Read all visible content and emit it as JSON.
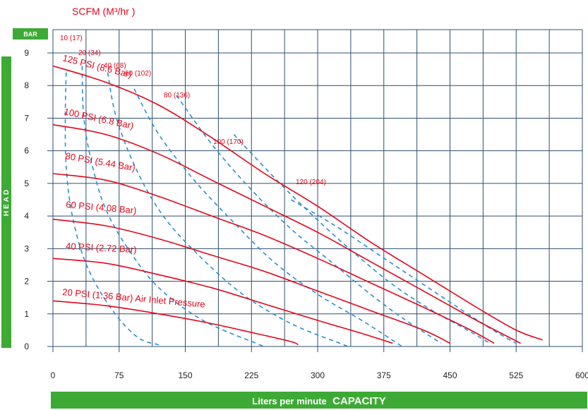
{
  "chart_data": {
    "type": "line",
    "top_title": "SCFM (M³/hr )",
    "y_unit_badge": "BAR",
    "ylabel": "HEAD",
    "xlabel_prefix": "Liters per minute",
    "xlabel_main": "CAPACITY",
    "xlim": [
      0,
      600
    ],
    "ylim": [
      0,
      9
    ],
    "x_ticks": [
      "0",
      "75",
      "150",
      "225",
      "300",
      "375",
      "450",
      "525",
      "600"
    ],
    "y_ticks": [
      "0",
      "1",
      "2",
      "3",
      "4",
      "5",
      "6",
      "7",
      "8",
      "9"
    ],
    "grid": true,
    "colors": {
      "pressure_curve": "#e3061a",
      "air_curve": "#2a8fd0",
      "accent_green": "#3daa35"
    },
    "pressure_series": [
      {
        "name": "125 PSI (8.6 Bar)",
        "points": [
          [
            0,
            8.6
          ],
          [
            60,
            8.1
          ],
          [
            120,
            7.4
          ],
          [
            180,
            6.4
          ],
          [
            240,
            5.3
          ],
          [
            300,
            4.3
          ],
          [
            360,
            3.2
          ],
          [
            420,
            2.2
          ],
          [
            480,
            1.2
          ],
          [
            525,
            0.5
          ],
          [
            555,
            0.2
          ]
        ]
      },
      {
        "name": "100 PSI (6.8 Bar)",
        "points": [
          [
            0,
            6.8
          ],
          [
            60,
            6.5
          ],
          [
            120,
            5.9
          ],
          [
            180,
            5.1
          ],
          [
            240,
            4.3
          ],
          [
            300,
            3.5
          ],
          [
            360,
            2.6
          ],
          [
            420,
            1.7
          ],
          [
            480,
            0.8
          ],
          [
            530,
            0.1
          ]
        ]
      },
      {
        "name": "80 PSI (5.44 Bar)",
        "points": [
          [
            0,
            5.3
          ],
          [
            60,
            5.1
          ],
          [
            120,
            4.6
          ],
          [
            180,
            4.0
          ],
          [
            240,
            3.4
          ],
          [
            300,
            2.7
          ],
          [
            360,
            1.95
          ],
          [
            420,
            1.2
          ],
          [
            470,
            0.55
          ],
          [
            500,
            0.1
          ]
        ]
      },
      {
        "name": "60 PSI (4.08 Bar)",
        "points": [
          [
            0,
            3.9
          ],
          [
            60,
            3.7
          ],
          [
            120,
            3.3
          ],
          [
            180,
            2.8
          ],
          [
            240,
            2.3
          ],
          [
            300,
            1.7
          ],
          [
            360,
            1.1
          ],
          [
            420,
            0.5
          ],
          [
            450,
            0.1
          ]
        ]
      },
      {
        "name": "40 PSI (2.72 Bar)",
        "points": [
          [
            0,
            2.7
          ],
          [
            60,
            2.55
          ],
          [
            120,
            2.2
          ],
          [
            180,
            1.8
          ],
          [
            240,
            1.3
          ],
          [
            300,
            0.8
          ],
          [
            350,
            0.4
          ],
          [
            385,
            0.1
          ]
        ]
      },
      {
        "name": "20 PSI (1.36 Bar) Air Inlet Pressure",
        "points": [
          [
            0,
            1.4
          ],
          [
            60,
            1.25
          ],
          [
            120,
            1.0
          ],
          [
            180,
            0.7
          ],
          [
            230,
            0.4
          ],
          [
            270,
            0.15
          ],
          [
            278,
            0.05
          ]
        ]
      }
    ],
    "air_series": [
      {
        "name": "10 (17)",
        "points": [
          [
            15,
            8.4
          ],
          [
            14,
            7.0
          ],
          [
            15,
            5.5
          ],
          [
            22,
            4.0
          ],
          [
            38,
            2.5
          ],
          [
            65,
            1.2
          ],
          [
            95,
            0.3
          ],
          [
            120,
            0.05
          ]
        ]
      },
      {
        "name": "20 (34)",
        "points": [
          [
            33,
            8.6
          ],
          [
            35,
            7.0
          ],
          [
            45,
            5.5
          ],
          [
            60,
            4.2
          ],
          [
            85,
            3.0
          ],
          [
            120,
            1.8
          ],
          [
            170,
            0.8
          ],
          [
            230,
            0.1
          ],
          [
            240,
            0.0
          ]
        ]
      },
      {
        "name": "40 (68)",
        "points": [
          [
            62,
            8.4
          ],
          [
            72,
            7.0
          ],
          [
            95,
            5.4
          ],
          [
            125,
            4.0
          ],
          [
            165,
            2.8
          ],
          [
            215,
            1.6
          ],
          [
            270,
            0.7
          ],
          [
            325,
            0.1
          ],
          [
            335,
            0.0
          ]
        ]
      },
      {
        "name": "60 (102)",
        "points": [
          [
            92,
            7.9
          ],
          [
            120,
            6.5
          ],
          [
            160,
            5.1
          ],
          [
            205,
            3.8
          ],
          [
            250,
            2.6
          ],
          [
            300,
            1.6
          ],
          [
            350,
            0.8
          ],
          [
            390,
            0.1
          ],
          [
            395,
            0.0
          ]
        ]
      },
      {
        "name": "80 (136)",
        "points": [
          [
            140,
            7.7
          ],
          [
            180,
            6.2
          ],
          [
            225,
            4.8
          ],
          [
            270,
            3.6
          ],
          [
            315,
            2.6
          ],
          [
            360,
            1.6
          ],
          [
            400,
            0.8
          ],
          [
            440,
            0.1
          ]
        ]
      },
      {
        "name": "100 (170)",
        "points": [
          [
            205,
            6.5
          ],
          [
            250,
            5.2
          ],
          [
            295,
            4.0
          ],
          [
            340,
            2.9
          ],
          [
            385,
            1.9
          ],
          [
            430,
            1.1
          ],
          [
            470,
            0.5
          ],
          [
            495,
            0.1
          ]
        ]
      },
      {
        "name": "120 (204)",
        "points": [
          [
            270,
            4.5
          ],
          [
            320,
            3.7
          ],
          [
            370,
            2.8
          ],
          [
            420,
            1.9
          ],
          [
            470,
            1.0
          ],
          [
            505,
            0.4
          ],
          [
            525,
            0.1
          ]
        ]
      }
    ]
  }
}
